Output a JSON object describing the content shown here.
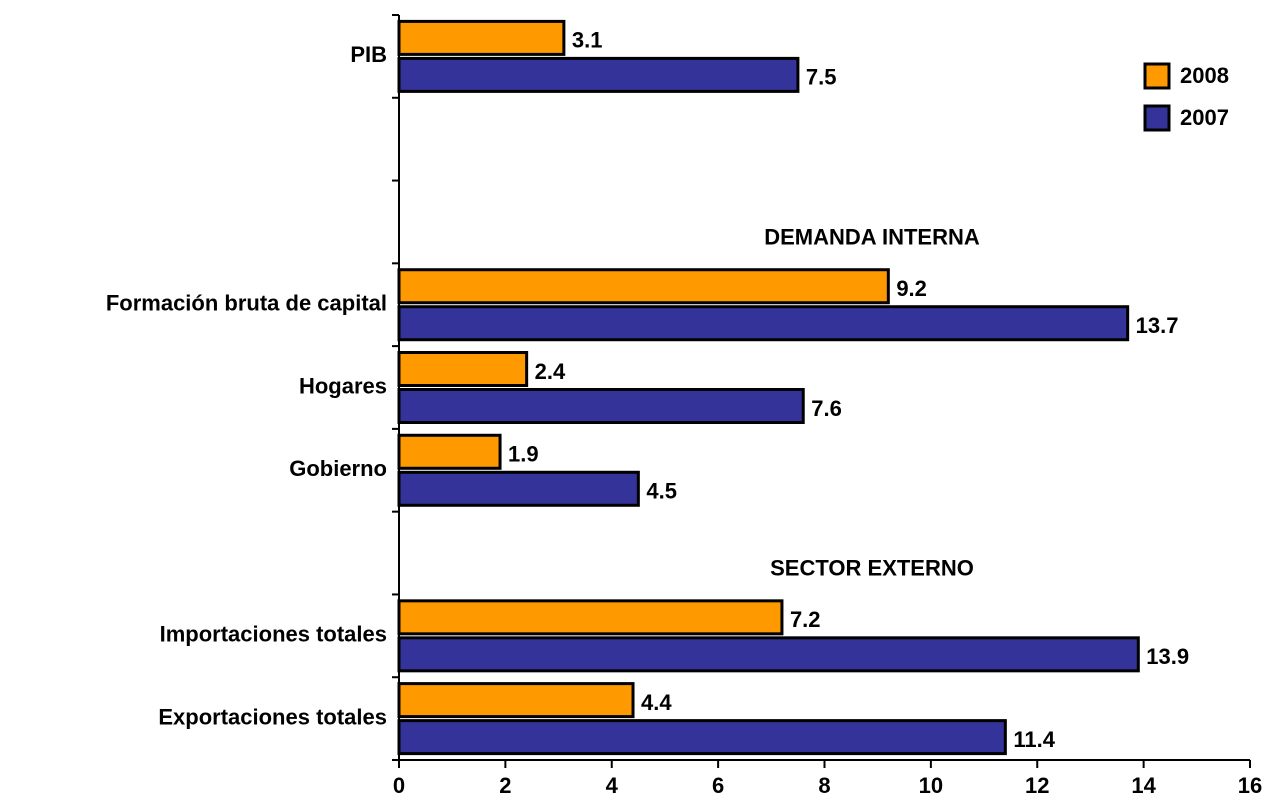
{
  "chart_data": {
    "type": "bar",
    "orientation": "horizontal",
    "categories": [
      "PIB",
      null,
      null,
      "Formación bruta de capital",
      "Hogares",
      "Gobierno",
      null,
      "Importaciones totales",
      "Exportaciones totales"
    ],
    "series": [
      {
        "name": "2008",
        "color": "#FF9900",
        "values": [
          3.1,
          null,
          null,
          9.2,
          2.4,
          1.9,
          null,
          7.2,
          4.4
        ]
      },
      {
        "name": "2007",
        "color": "#333399",
        "values": [
          7.5,
          null,
          null,
          13.7,
          7.6,
          4.5,
          null,
          13.9,
          11.4
        ]
      }
    ],
    "annotations": [
      "DEMANDA INTERNA",
      "SECTOR EXTERNO"
    ],
    "xlim": [
      0,
      16
    ],
    "xticks": [
      0,
      2,
      4,
      6,
      8,
      10,
      12,
      14,
      16
    ],
    "grid": false,
    "legend": "top-right"
  }
}
